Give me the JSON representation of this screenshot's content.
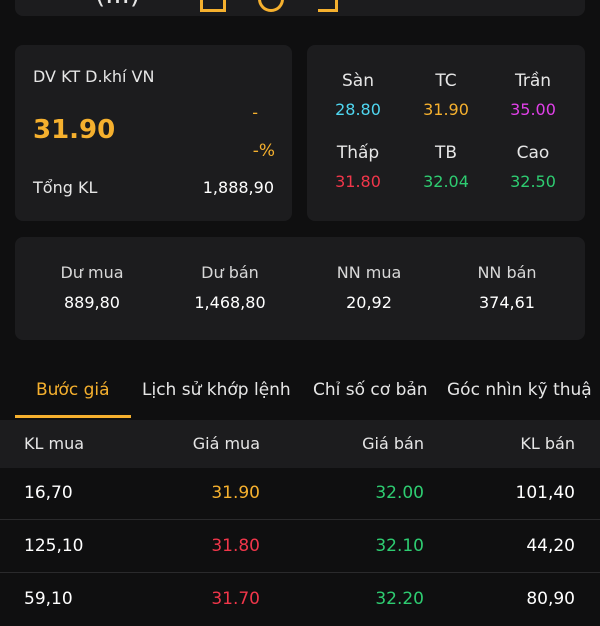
{
  "colors": {
    "reference": "#f5b02e",
    "floor": "#4fd6f0",
    "ceiling": "#e040e8",
    "down": "#f0364a",
    "up": "#2ecc71",
    "text": "#e6e6e6"
  },
  "header": {
    "partial_text": "(...)"
  },
  "summary": {
    "name": "DV KT D.khí VN",
    "price": "31.90",
    "change": "-",
    "change_pct": "-%",
    "volume_label": "Tổng KL",
    "volume_value": "1,888,90"
  },
  "ref_prices": {
    "floor": {
      "label": "Sàn",
      "value": "28.80"
    },
    "reference": {
      "label": "TC",
      "value": "31.90"
    },
    "ceiling": {
      "label": "Trần",
      "value": "35.00"
    },
    "low": {
      "label": "Thấp",
      "value": "31.80"
    },
    "average": {
      "label": "TB",
      "value": "32.04"
    },
    "high": {
      "label": "Cao",
      "value": "32.50"
    }
  },
  "market_stats": [
    {
      "label": "Dư mua",
      "value": "889,80"
    },
    {
      "label": "Dư bán",
      "value": "1,468,80"
    },
    {
      "label": "NN mua",
      "value": "20,92"
    },
    {
      "label": "NN bán",
      "value": "374,61"
    }
  ],
  "tabs": [
    {
      "label": "Bước giá",
      "active": true
    },
    {
      "label": "Lịch sử khớp lệnh",
      "active": false
    },
    {
      "label": "Chỉ số cơ bản",
      "active": false
    },
    {
      "label": "Góc nhìn kỹ thuậ",
      "active": false
    }
  ],
  "order_book": {
    "headers": [
      "KL mua",
      "Giá mua",
      "Giá bán",
      "KL bán"
    ],
    "rows": [
      {
        "buy_vol": "16,70",
        "buy_price": "31.90",
        "sell_price": "32.00",
        "sell_vol": "101,40"
      },
      {
        "buy_vol": "125,10",
        "buy_price": "31.80",
        "sell_price": "32.10",
        "sell_vol": "44,20"
      },
      {
        "buy_vol": "59,10",
        "buy_price": "31.70",
        "sell_price": "32.20",
        "sell_vol": "80,90"
      }
    ]
  }
}
